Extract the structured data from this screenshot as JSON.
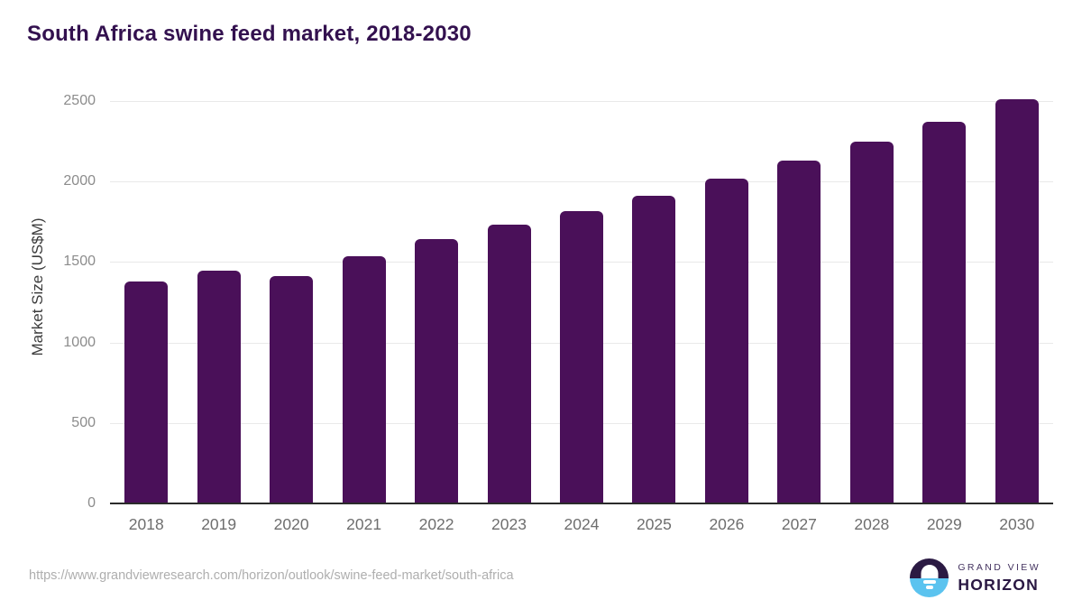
{
  "title": "South Africa swine feed market, 2018-2030",
  "chart_data": {
    "type": "bar",
    "title": "South Africa swine feed market, 2018-2030",
    "categories": [
      "2018",
      "2019",
      "2020",
      "2021",
      "2022",
      "2023",
      "2024",
      "2025",
      "2026",
      "2027",
      "2028",
      "2029",
      "2030"
    ],
    "values": [
      1380,
      1446,
      1410,
      1536,
      1640,
      1732,
      1816,
      1912,
      2018,
      2130,
      2248,
      2371,
      2510
    ],
    "xlabel": "",
    "ylabel": "Market Size (US$M)",
    "ylim": [
      0,
      2600
    ],
    "yticks": [
      0,
      500,
      1000,
      1500,
      2000,
      2500
    ],
    "grid": true,
    "legend": "none",
    "bar_color": "#4a1059"
  },
  "footer": {
    "source_url": "https://www.grandviewresearch.com/horizon/outlook/swine-feed-market/south-africa",
    "logo": {
      "line1": "GRAND VIEW",
      "line2": "HORIZON",
      "icon": "horizon-sunset-icon"
    }
  },
  "colors": {
    "title": "#33114f",
    "bar": "#4a1059",
    "gridline": "#e9e9e9",
    "axis_line": "#2b2b2b",
    "tick_label": "#8c8c8c",
    "x_label": "#6e6e6e",
    "url_text": "#aeaeae",
    "logo_dark": "#2b1a43",
    "logo_blue": "#5bc3ef"
  }
}
